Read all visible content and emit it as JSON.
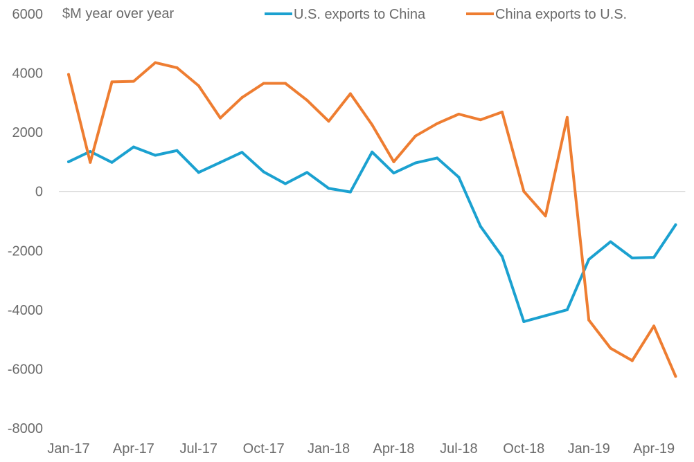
{
  "chart_data": {
    "type": "line",
    "ylabel": "$M year over year",
    "ylim": [
      -8000,
      6000
    ],
    "yticks": [
      6000,
      4000,
      2000,
      0,
      -2000,
      -4000,
      -6000,
      -8000
    ],
    "x": [
      "Jan-17",
      "Feb-17",
      "Mar-17",
      "Apr-17",
      "May-17",
      "Jun-17",
      "Jul-17",
      "Aug-17",
      "Sep-17",
      "Oct-17",
      "Nov-17",
      "Dec-17",
      "Jan-18",
      "Feb-18",
      "Mar-18",
      "Apr-18",
      "May-18",
      "Jun-18",
      "Jul-18",
      "Aug-18",
      "Sep-18",
      "Oct-18",
      "Nov-18",
      "Dec-18",
      "Jan-19",
      "Feb-19",
      "Mar-19",
      "Apr-19",
      "May-19"
    ],
    "xtick_labels": [
      "Jan-17",
      "Apr-17",
      "Jul-17",
      "Oct-17",
      "Jan-18",
      "Apr-18",
      "Jul-18",
      "Oct-18",
      "Jan-19",
      "Apr-19"
    ],
    "legend_position": "top",
    "series": [
      {
        "name": "U.S. exports to China",
        "color": "#1ba1d0",
        "values": [
          1000,
          1350,
          980,
          1500,
          1220,
          1380,
          640,
          980,
          1320,
          660,
          260,
          640,
          100,
          -20,
          1330,
          620,
          960,
          1130,
          480,
          -1180,
          -2200,
          -4400,
          -4200,
          -4000,
          -2300,
          -1700,
          -2250,
          -2230,
          -1130
        ]
      },
      {
        "name": "China exports to U.S.",
        "color": "#ee7d31",
        "values": [
          3950,
          980,
          3700,
          3720,
          4350,
          4180,
          3570,
          2480,
          3170,
          3650,
          3650,
          3080,
          2370,
          3300,
          2250,
          1000,
          1870,
          2290,
          2610,
          2420,
          2680,
          0,
          -830,
          2500,
          -4350,
          -5300,
          -5720,
          -4550,
          -6250
        ]
      }
    ]
  }
}
